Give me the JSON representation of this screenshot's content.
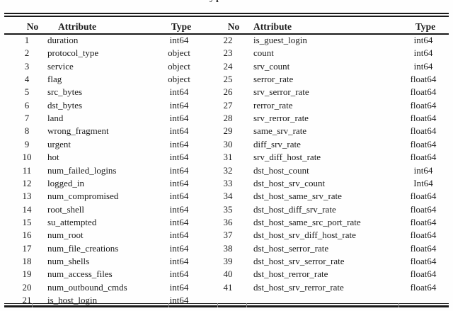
{
  "caption_fragment": "yp",
  "colors": {
    "background": "#fefefe",
    "text": "#1b1b1b",
    "rule": "#1a1a1a",
    "rule_artifact": "#8d8d8d"
  },
  "table": {
    "headers": [
      "No",
      "Attribute",
      "Type",
      "No",
      "Attribute",
      "Type"
    ],
    "left_rows": [
      {
        "no": "1",
        "attribute": "duration",
        "type": "int64"
      },
      {
        "no": "2",
        "attribute": "protocol_type",
        "type": "object"
      },
      {
        "no": "3",
        "attribute": "service",
        "type": "object"
      },
      {
        "no": "4",
        "attribute": "flag",
        "type": "object"
      },
      {
        "no": "5",
        "attribute": "src_bytes",
        "type": "int64"
      },
      {
        "no": "6",
        "attribute": "dst_bytes",
        "type": "int64"
      },
      {
        "no": "7",
        "attribute": "land",
        "type": "int64"
      },
      {
        "no": "8",
        "attribute": "wrong_fragment",
        "type": "int64"
      },
      {
        "no": "9",
        "attribute": "urgent",
        "type": "int64"
      },
      {
        "no": "10",
        "attribute": "hot",
        "type": "int64"
      },
      {
        "no": "11",
        "attribute": "num_failed_logins",
        "type": "int64"
      },
      {
        "no": "12",
        "attribute": "logged_in",
        "type": "int64"
      },
      {
        "no": "13",
        "attribute": "num_compromised",
        "type": "int64"
      },
      {
        "no": "14",
        "attribute": "root_shell",
        "type": "int64"
      },
      {
        "no": "15",
        "attribute": "su_attempted",
        "type": "int64"
      },
      {
        "no": "16",
        "attribute": "num_root",
        "type": "int64"
      },
      {
        "no": "17",
        "attribute": "num_file_creations",
        "type": "int64"
      },
      {
        "no": "18",
        "attribute": "num_shells",
        "type": "int64"
      },
      {
        "no": "19",
        "attribute": "num_access_files",
        "type": "int64"
      },
      {
        "no": "20",
        "attribute": "num_outbound_cmds",
        "type": "int64"
      },
      {
        "no": "21",
        "attribute": "is_host_login",
        "type": "int64"
      }
    ],
    "right_rows": [
      {
        "no": "22",
        "attribute": "is_guest_login",
        "type": "int64"
      },
      {
        "no": "23",
        "attribute": "count",
        "type": "int64"
      },
      {
        "no": "24",
        "attribute": "srv_count",
        "type": "int64"
      },
      {
        "no": "25",
        "attribute": "serror_rate",
        "type": "float64"
      },
      {
        "no": "26",
        "attribute": "srv_serror_rate",
        "type": "float64"
      },
      {
        "no": "27",
        "attribute": "rerror_rate",
        "type": "float64"
      },
      {
        "no": "28",
        "attribute": "srv_rerror_rate",
        "type": "float64"
      },
      {
        "no": "29",
        "attribute": "same_srv_rate",
        "type": "float64"
      },
      {
        "no": "30",
        "attribute": "diff_srv_rate",
        "type": "float64"
      },
      {
        "no": "31",
        "attribute": "srv_diff_host_rate",
        "type": "float64"
      },
      {
        "no": "32",
        "attribute": "dst_host_count",
        "type": "int64"
      },
      {
        "no": "33",
        "attribute": "dst_host_srv_count",
        "type": "Int64"
      },
      {
        "no": "34",
        "attribute": "dst_host_same_srv_rate",
        "type": "float64"
      },
      {
        "no": "35",
        "attribute": "dst_host_diff_srv_rate",
        "type": "float64"
      },
      {
        "no": "36",
        "attribute": "dst_host_same_src_port_rate",
        "type": "float64"
      },
      {
        "no": "37",
        "attribute": "dst_host_srv_diff_host_rate",
        "type": "float64"
      },
      {
        "no": "38",
        "attribute": "dst_host_serror_rate",
        "type": "float64"
      },
      {
        "no": "39",
        "attribute": "dst_host_srv_serror_rate",
        "type": "float64"
      },
      {
        "no": "40",
        "attribute": "dst_host_rerror_rate",
        "type": "float64"
      },
      {
        "no": "41",
        "attribute": "dst_host_srv_rerror_rate",
        "type": "float64"
      }
    ]
  }
}
